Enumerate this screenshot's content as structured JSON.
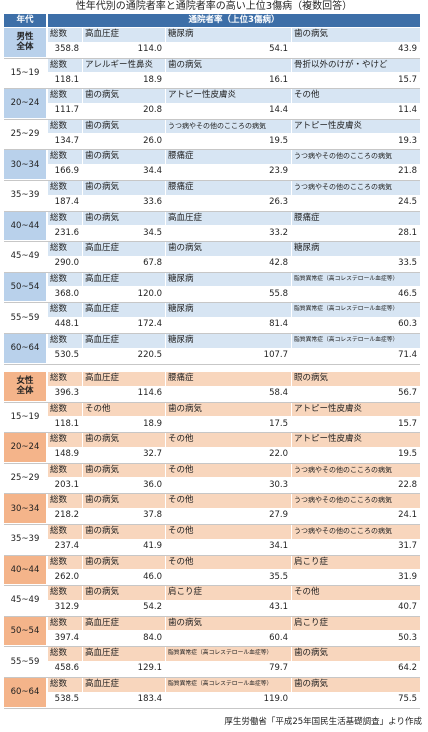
{
  "title": "性年代別の通院者率と通院者率の高い上位3傷病（複数回答）",
  "header": {
    "age": "年代",
    "rate": "通院者率（上位3傷病）"
  },
  "male": [
    {
      "age": "男性\n全体",
      "total": "総数",
      "total_val": "358.8",
      "d": [
        [
          "高血圧症",
          "114.0"
        ],
        [
          "糖尿病",
          "54.1"
        ],
        [
          "歯の病気",
          "43.9"
        ]
      ]
    },
    {
      "age": "15~19",
      "total": "総数",
      "total_val": "118.1",
      "d": [
        [
          "アレルギー性鼻炎",
          "18.9"
        ],
        [
          "歯の病気",
          "16.1"
        ],
        [
          "骨折以外のけが・やけど",
          "15.7"
        ]
      ]
    },
    {
      "age": "20~24",
      "total": "総数",
      "total_val": "111.7",
      "d": [
        [
          "歯の病気",
          "20.8"
        ],
        [
          "アトピー性皮膚炎",
          "14.4"
        ],
        [
          "その他",
          "11.4"
        ]
      ]
    },
    {
      "age": "25~29",
      "total": "総数",
      "total_val": "134.7",
      "d": [
        [
          "歯の病気",
          "26.0"
        ],
        [
          "うつ病やその他のこころの病気",
          "19.5"
        ],
        [
          "アトピー性皮膚炎",
          "19.3"
        ]
      ]
    },
    {
      "age": "30~34",
      "total": "総数",
      "total_val": "166.9",
      "d": [
        [
          "歯の病気",
          "34.4"
        ],
        [
          "腰痛症",
          "23.9"
        ],
        [
          "うつ病やその他のこころの病気",
          "21.8"
        ]
      ]
    },
    {
      "age": "35~39",
      "total": "総数",
      "total_val": "187.4",
      "d": [
        [
          "歯の病気",
          "33.6"
        ],
        [
          "腰痛症",
          "26.3"
        ],
        [
          "うつ病やその他のこころの病気",
          "24.5"
        ]
      ]
    },
    {
      "age": "40~44",
      "total": "総数",
      "total_val": "231.6",
      "d": [
        [
          "歯の病気",
          "34.5"
        ],
        [
          "高血圧症",
          "33.2"
        ],
        [
          "腰痛症",
          "28.1"
        ]
      ]
    },
    {
      "age": "45~49",
      "total": "総数",
      "total_val": "290.0",
      "d": [
        [
          "高血圧症",
          "67.8"
        ],
        [
          "歯の病気",
          "42.8"
        ],
        [
          "糖尿病",
          "33.5"
        ]
      ]
    },
    {
      "age": "50~54",
      "total": "総数",
      "total_val": "368.0",
      "d": [
        [
          "高血圧症",
          "120.0"
        ],
        [
          "糖尿病",
          "55.8"
        ],
        [
          "脂質異常症（高コレステロール血症等）",
          "46.5"
        ]
      ]
    },
    {
      "age": "55~59",
      "total": "総数",
      "total_val": "448.1",
      "d": [
        [
          "高血圧症",
          "172.4"
        ],
        [
          "糖尿病",
          "81.4"
        ],
        [
          "脂質異常症（高コレステロール血症等）",
          "60.3"
        ]
      ]
    },
    {
      "age": "60~64",
      "total": "総数",
      "total_val": "530.5",
      "d": [
        [
          "高血圧症",
          "220.5"
        ],
        [
          "糖尿病",
          "107.7"
        ],
        [
          "脂質異常症（高コレステロール血症等）",
          "71.4"
        ]
      ]
    }
  ],
  "female": [
    {
      "age": "女性\n全体",
      "total": "総数",
      "total_val": "396.3",
      "d": [
        [
          "高血圧症",
          "114.6"
        ],
        [
          "腰痛症",
          "58.4"
        ],
        [
          "眼の病気",
          "56.7"
        ]
      ]
    },
    {
      "age": "15~19",
      "total": "総数",
      "total_val": "118.1",
      "d": [
        [
          "その他",
          "18.9"
        ],
        [
          "歯の病気",
          "17.5"
        ],
        [
          "アトピー性皮膚炎",
          "15.7"
        ]
      ]
    },
    {
      "age": "20~24",
      "total": "総数",
      "total_val": "148.9",
      "d": [
        [
          "歯の病気",
          "32.7"
        ],
        [
          "その他",
          "22.0"
        ],
        [
          "アトピー性皮膚炎",
          "19.5"
        ]
      ]
    },
    {
      "age": "25~29",
      "total": "総数",
      "total_val": "203.1",
      "d": [
        [
          "歯の病気",
          "36.0"
        ],
        [
          "その他",
          "30.3"
        ],
        [
          "うつ病やその他のこころの病気",
          "22.8"
        ]
      ]
    },
    {
      "age": "30~34",
      "total": "総数",
      "total_val": "218.2",
      "d": [
        [
          "歯の病気",
          "37.8"
        ],
        [
          "その他",
          "27.9"
        ],
        [
          "うつ病やその他のこころの病気",
          "24.1"
        ]
      ]
    },
    {
      "age": "35~39",
      "total": "総数",
      "total_val": "237.4",
      "d": [
        [
          "歯の病気",
          "41.9"
        ],
        [
          "その他",
          "34.1"
        ],
        [
          "うつ病やその他のこころの病気",
          "31.7"
        ]
      ]
    },
    {
      "age": "40~44",
      "total": "総数",
      "total_val": "262.0",
      "d": [
        [
          "歯の病気",
          "46.0"
        ],
        [
          "その他",
          "35.5"
        ],
        [
          "肩こり症",
          "31.9"
        ]
      ]
    },
    {
      "age": "45~49",
      "total": "総数",
      "total_val": "312.9",
      "d": [
        [
          "歯の病気",
          "54.2"
        ],
        [
          "肩こり症",
          "43.1"
        ],
        [
          "その他",
          "40.7"
        ]
      ]
    },
    {
      "age": "50~54",
      "total": "総数",
      "total_val": "397.4",
      "d": [
        [
          "高血圧症",
          "84.0"
        ],
        [
          "歯の病気",
          "60.4"
        ],
        [
          "肩こり症",
          "50.3"
        ]
      ]
    },
    {
      "age": "55~59",
      "total": "総数",
      "total_val": "458.6",
      "d": [
        [
          "高血圧症",
          "129.1"
        ],
        [
          "脂質異常症（高コレステロール血症等）",
          "79.7"
        ],
        [
          "歯の病気",
          "64.2"
        ]
      ]
    },
    {
      "age": "60~64",
      "total": "総数",
      "total_val": "538.5",
      "d": [
        [
          "高血圧症",
          "183.4"
        ],
        [
          "脂質異常症（高コレステロール血症等）",
          "119.0"
        ],
        [
          "歯の病気",
          "75.5"
        ]
      ]
    }
  ],
  "source": "厚生労働省「平成25年国民生活基礎調査」より作成"
}
